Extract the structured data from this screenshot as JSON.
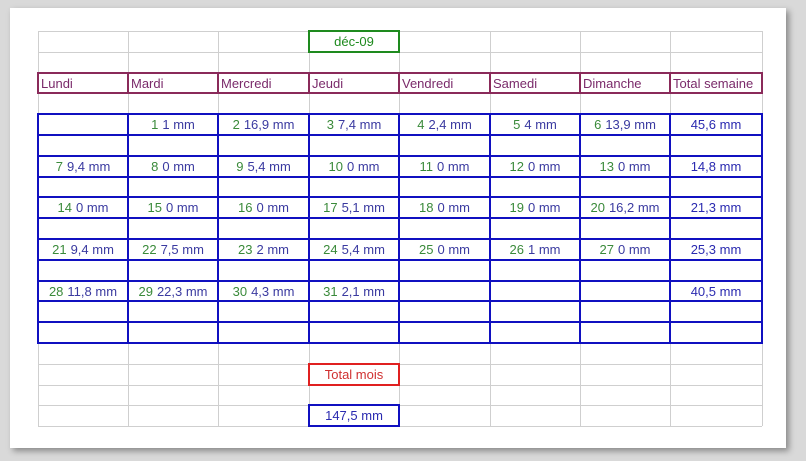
{
  "month": "déc-09",
  "headers": [
    "Lundi",
    "Mardi",
    "Mercredi",
    "Jeudi",
    "Vendredi",
    "Samedi",
    "Dimanche",
    "Total semaine"
  ],
  "weeks": [
    {
      "days": [
        null,
        {
          "day": "1",
          "value": "1 mm"
        },
        {
          "day": "2",
          "value": "16,9 mm"
        },
        {
          "day": "3",
          "value": "7,4 mm"
        },
        {
          "day": "4",
          "value": "2,4 mm"
        },
        {
          "day": "5",
          "value": "4 mm"
        },
        {
          "day": "6",
          "value": "13,9 mm"
        }
      ],
      "total": "45,6 mm"
    },
    {
      "days": [
        {
          "day": "7",
          "value": "9,4 mm"
        },
        {
          "day": "8",
          "value": "0 mm"
        },
        {
          "day": "9",
          "value": "5,4 mm"
        },
        {
          "day": "10",
          "value": "0 mm"
        },
        {
          "day": "11",
          "value": "0 mm"
        },
        {
          "day": "12",
          "value": "0 mm"
        },
        {
          "day": "13",
          "value": "0 mm"
        }
      ],
      "total": "14,8 mm"
    },
    {
      "days": [
        {
          "day": "14",
          "value": "0 mm"
        },
        {
          "day": "15",
          "value": "0 mm"
        },
        {
          "day": "16",
          "value": "0 mm"
        },
        {
          "day": "17",
          "value": "5,1 mm"
        },
        {
          "day": "18",
          "value": "0 mm"
        },
        {
          "day": "19",
          "value": "0 mm"
        },
        {
          "day": "20",
          "value": "16,2 mm"
        }
      ],
      "total": "21,3 mm"
    },
    {
      "days": [
        {
          "day": "21",
          "value": "9,4 mm"
        },
        {
          "day": "22",
          "value": "7,5 mm"
        },
        {
          "day": "23",
          "value": "2 mm"
        },
        {
          "day": "24",
          "value": "5,4 mm"
        },
        {
          "day": "25",
          "value": "0 mm"
        },
        {
          "day": "26",
          "value": "1 mm"
        },
        {
          "day": "27",
          "value": "0 mm"
        }
      ],
      "total": "25,3 mm"
    },
    {
      "days": [
        {
          "day": "28",
          "value": "11,8 mm"
        },
        {
          "day": "29",
          "value": "22,3 mm"
        },
        {
          "day": "30",
          "value": "4,3 mm"
        },
        {
          "day": "31",
          "value": "2,1 mm"
        },
        null,
        null,
        null
      ],
      "total": "40,5 mm"
    }
  ],
  "total_label": "Total mois",
  "total_value": "147,5 mm",
  "colors": {
    "month": "#1e8a1e",
    "header": "#8a2a5a",
    "calendar": "#1010c0",
    "total_label": "#e02020"
  }
}
